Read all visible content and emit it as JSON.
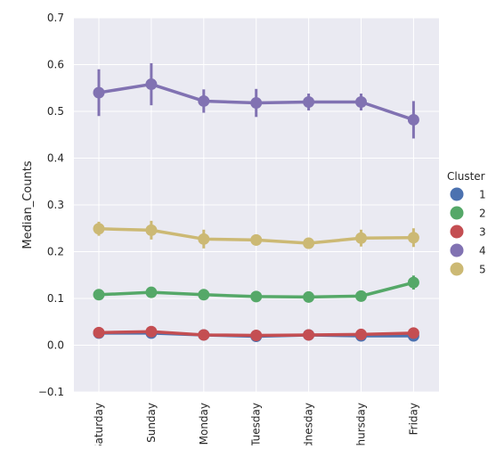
{
  "chart_data": {
    "type": "line",
    "title": "",
    "xlabel": "",
    "ylabel": "Median_Counts",
    "ylim": [
      -0.1,
      0.7
    ],
    "yticks": [
      -0.1,
      0.0,
      0.1,
      0.2,
      0.3,
      0.4,
      0.5,
      0.6,
      0.7
    ],
    "ytick_labels": [
      "−0.1",
      "0.0",
      "0.1",
      "0.2",
      "0.3",
      "0.4",
      "0.5",
      "0.6",
      "0.7"
    ],
    "categories": [
      "Saturday",
      "Sunday",
      "Monday",
      "Tuesday",
      "Wednesday",
      "Thursday",
      "Friday"
    ],
    "grid": true,
    "style": "seaborn-darkgrid point plot with error bars",
    "legend": {
      "title": "Cluster",
      "placement": "right"
    },
    "series": [
      {
        "name": "1",
        "color": "#4c72b0",
        "values": [
          0.026,
          0.026,
          0.022,
          0.019,
          0.022,
          0.02,
          0.02
        ],
        "err": [
          0.003,
          0.003,
          0.003,
          0.003,
          0.003,
          0.003,
          0.003
        ]
      },
      {
        "name": "2",
        "color": "#55a868",
        "values": [
          0.108,
          0.113,
          0.108,
          0.104,
          0.103,
          0.105,
          0.134
        ],
        "err": [
          0.004,
          0.004,
          0.004,
          0.004,
          0.004,
          0.004,
          0.015
        ]
      },
      {
        "name": "3",
        "color": "#c44e52",
        "values": [
          0.027,
          0.029,
          0.022,
          0.021,
          0.022,
          0.023,
          0.026
        ],
        "err": [
          0.003,
          0.003,
          0.003,
          0.003,
          0.003,
          0.003,
          0.003
        ]
      },
      {
        "name": "4",
        "color": "#8172b2",
        "values": [
          0.54,
          0.558,
          0.522,
          0.518,
          0.52,
          0.52,
          0.482
        ],
        "err": [
          0.05,
          0.045,
          0.025,
          0.03,
          0.018,
          0.018,
          0.04
        ]
      },
      {
        "name": "5",
        "color": "#ccb974",
        "values": [
          0.249,
          0.246,
          0.227,
          0.225,
          0.218,
          0.229,
          0.23
        ],
        "err": [
          0.015,
          0.02,
          0.02,
          0.012,
          0.006,
          0.018,
          0.02
        ]
      }
    ]
  }
}
